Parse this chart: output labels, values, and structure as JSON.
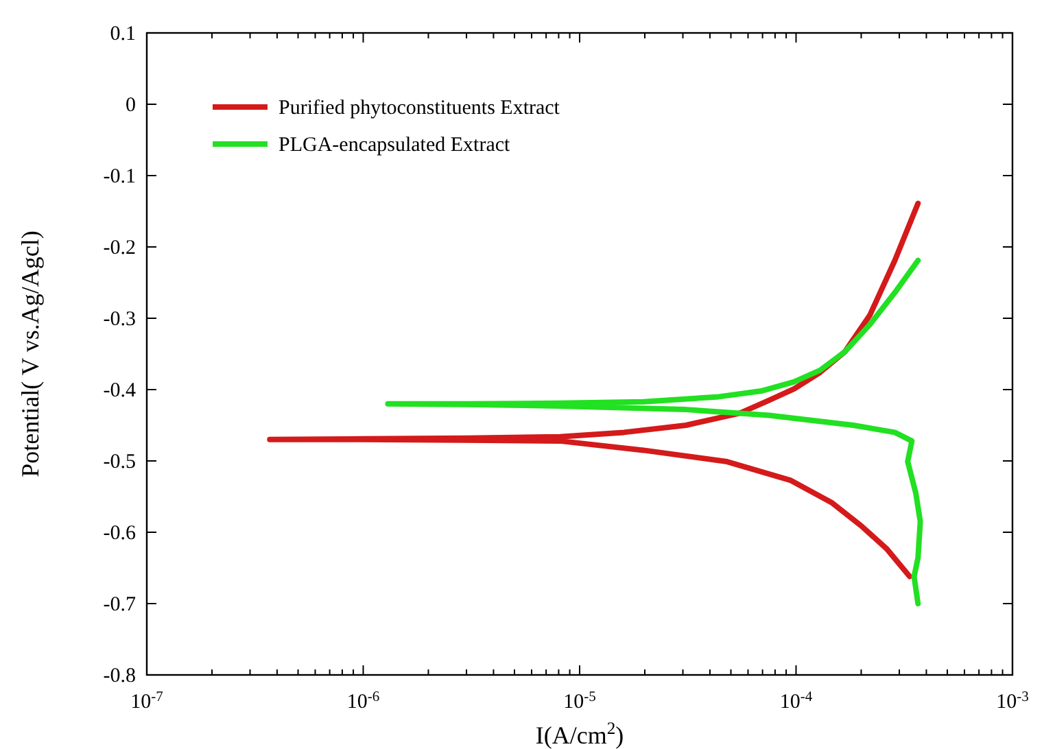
{
  "chart_data": {
    "type": "line",
    "xlabel": "I(A/cm$^{2}$)",
    "ylabel": "Potential( V vs.Ag/Agcl)",
    "log": "x",
    "xlim": [
      1e-07,
      0.001
    ],
    "ylim": [
      -0.8,
      0.1
    ],
    "xticks": [
      {
        "value": 1e-07,
        "label": "10$^{-7}$"
      },
      {
        "value": 2e-07,
        "label": null
      },
      {
        "value": 3e-07,
        "label": null
      },
      {
        "value": 4e-07,
        "label": null
      },
      {
        "value": 5e-07,
        "label": null
      },
      {
        "value": 6e-07,
        "label": null
      },
      {
        "value": 7e-07,
        "label": null
      },
      {
        "value": 8e-07,
        "label": null
      },
      {
        "value": 9e-07,
        "label": null
      },
      {
        "value": 1e-06,
        "label": "10$^{-6}$"
      },
      {
        "value": 2e-06,
        "label": null
      },
      {
        "value": 3e-06,
        "label": null
      },
      {
        "value": 4e-06,
        "label": null
      },
      {
        "value": 5e-06,
        "label": null
      },
      {
        "value": 6e-06,
        "label": null
      },
      {
        "value": 7e-06,
        "label": null
      },
      {
        "value": 8e-06,
        "label": null
      },
      {
        "value": 9e-06,
        "label": null
      },
      {
        "value": 1e-05,
        "label": "10$^{-5}$"
      },
      {
        "value": 2e-05,
        "label": null
      },
      {
        "value": 3e-05,
        "label": null
      },
      {
        "value": 4e-05,
        "label": null
      },
      {
        "value": 5e-05,
        "label": null
      },
      {
        "value": 6e-05,
        "label": null
      },
      {
        "value": 7e-05,
        "label": null
      },
      {
        "value": 8e-05,
        "label": null
      },
      {
        "value": 9e-05,
        "label": null
      },
      {
        "value": 0.0001,
        "label": "10$^{-4}$"
      },
      {
        "value": 0.0002,
        "label": null
      },
      {
        "value": 0.0003,
        "label": null
      },
      {
        "value": 0.0004,
        "label": null
      },
      {
        "value": 0.0005,
        "label": null
      },
      {
        "value": 0.0006,
        "label": null
      },
      {
        "value": 0.0007,
        "label": null
      },
      {
        "value": 0.0008,
        "label": null
      },
      {
        "value": 0.0009,
        "label": null
      },
      {
        "value": 0.001,
        "label": "10$^{-3}$"
      }
    ],
    "yticks": [
      0.1,
      0,
      -0.1,
      -0.2,
      -0.3,
      -0.4,
      -0.5,
      -0.6,
      -0.7,
      -0.8
    ],
    "grid": false,
    "legend": "top left",
    "line_style": "solid",
    "marker": "none",
    "series": [
      {
        "name": "Purified phytoconstituents Extract",
        "color": "#d41a1a",
        "x": [
          0.000335,
          0.000262,
          0.0002,
          0.000147,
          9.4e-05,
          4.8e-05,
          1.97e-05,
          8.1e-06,
          3e-06,
          1e-06,
          3.7e-07,
          1e-06,
          3e-06,
          8.1e-06,
          1.6e-05,
          3.1e-05,
          5.5e-05,
          7.5e-05,
          9.8e-05,
          0.000129,
          0.000168,
          0.000219,
          0.000286,
          0.000366
        ],
        "values": [
          -0.662,
          -0.623,
          -0.591,
          -0.559,
          -0.527,
          -0.501,
          -0.485,
          -0.472,
          -0.471,
          -0.47,
          -0.47,
          -0.469,
          -0.468,
          -0.466,
          -0.46,
          -0.45,
          -0.433,
          -0.415,
          -0.399,
          -0.376,
          -0.347,
          -0.296,
          -0.219,
          -0.139
        ]
      },
      {
        "name": "PLGA-encapsulated Extract",
        "color": "#22e022",
        "x": [
          0.000366,
          0.000351,
          0.000366,
          0.000375,
          0.000358,
          0.000328,
          0.000343,
          0.000286,
          0.000184,
          7.5e-05,
          3.1e-05,
          8.1e-06,
          3e-06,
          1.3e-06,
          3e-06,
          8.1e-06,
          1.97e-05,
          4.4e-05,
          6.9e-05,
          9.8e-05,
          0.000129,
          0.000168,
          0.000219,
          0.000286,
          0.000366
        ],
        "values": [
          -0.7,
          -0.662,
          -0.636,
          -0.585,
          -0.546,
          -0.501,
          -0.472,
          -0.46,
          -0.45,
          -0.436,
          -0.428,
          -0.423,
          -0.421,
          -0.42,
          -0.42,
          -0.419,
          -0.417,
          -0.41,
          -0.402,
          -0.389,
          -0.373,
          -0.347,
          -0.309,
          -0.264,
          -0.219
        ]
      }
    ]
  }
}
